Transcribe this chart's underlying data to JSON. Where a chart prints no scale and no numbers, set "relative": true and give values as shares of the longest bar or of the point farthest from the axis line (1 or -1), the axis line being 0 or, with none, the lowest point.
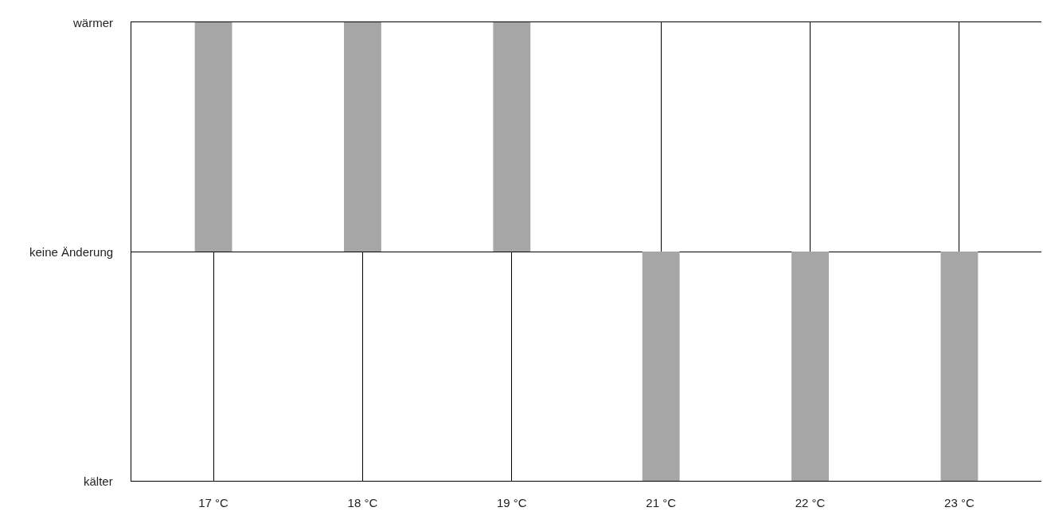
{
  "chart_data": {
    "type": "bar",
    "relative": true,
    "categories": [
      "17 °C",
      "18 °C",
      "19 °C",
      "21 °C",
      "22 °C",
      "23 °C"
    ],
    "values": [
      1,
      1,
      1,
      -1,
      -1,
      -1
    ],
    "color": "#a6a6a6",
    "grid": true,
    "annotations": [
      "wärmer",
      "keine Änderung",
      "kälter"
    ]
  }
}
